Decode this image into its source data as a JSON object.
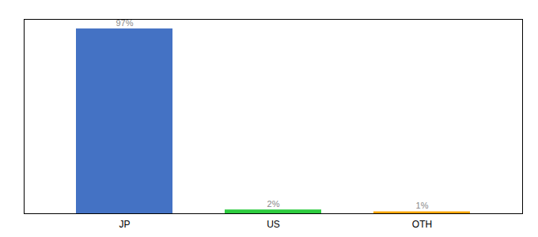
{
  "chart_data": {
    "type": "bar",
    "categories": [
      "JP",
      "US",
      "OTH"
    ],
    "values": [
      97,
      2,
      1
    ],
    "value_labels": [
      "97%",
      "2%",
      "1%"
    ],
    "colors": [
      "#4472C4",
      "#2ECC40",
      "#FFA500"
    ],
    "ylim": [
      0,
      102
    ],
    "data_labels": true,
    "tick_labels": "x"
  }
}
